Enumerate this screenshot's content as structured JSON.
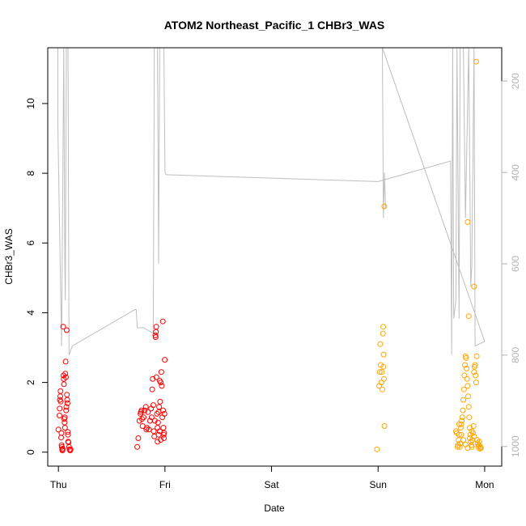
{
  "chart_data": {
    "type": "scatter",
    "title": "ATOM2 Northeast_Pacific_1 CHBr3_WAS",
    "xlabel": "Date",
    "ylabel": "CHBr3_WAS",
    "x_ticks": [
      {
        "label": "Thu",
        "x": 0
      },
      {
        "label": "Fri",
        "x": 1
      },
      {
        "label": "Sat",
        "x": 2
      },
      {
        "label": "Sun",
        "x": 3
      },
      {
        "label": "Mon",
        "x": 4
      }
    ],
    "xlim": [
      -0.1,
      4.16
    ],
    "ylim": [
      -0.4,
      11.6
    ],
    "y_ticks": [
      0,
      2,
      4,
      6,
      8,
      10
    ],
    "y2_ticks": [
      200,
      400,
      600,
      800,
      1000
    ],
    "y2lim": [
      1043,
      127
    ],
    "colors": {
      "series_red": "#ff0000",
      "series_orange": "#ffa500",
      "altitude_line": "#bebebe",
      "axis": "#000000",
      "right_axis": "#b3b3b3"
    },
    "altitude_profile": [
      [
        -0.005,
        127
      ],
      [
        -0.005,
        300
      ],
      [
        0.03,
        780
      ],
      [
        0.05,
        127
      ],
      [
        0.06,
        600
      ],
      [
        0.065,
        680
      ],
      [
        0.075,
        127
      ],
      [
        0.09,
        127
      ],
      [
        0.1,
        800
      ],
      [
        0.13,
        780
      ],
      [
        0.72,
        700
      ],
      [
        0.73,
        700
      ],
      [
        0.74,
        740
      ],
      [
        0.8,
        740
      ],
      [
        0.89,
        752
      ],
      [
        0.9,
        127
      ],
      [
        0.93,
        127
      ],
      [
        0.94,
        600
      ],
      [
        0.95,
        127
      ],
      [
        0.97,
        127
      ],
      [
        0.99,
        127
      ],
      [
        1.0,
        400
      ],
      [
        1.01,
        405
      ],
      [
        3.0,
        420
      ],
      [
        3.68,
        375
      ],
      [
        3.69,
        800
      ],
      [
        3.7,
        127
      ],
      [
        3.71,
        720
      ],
      [
        3.73,
        680
      ],
      [
        3.74,
        127
      ],
      [
        3.76,
        720
      ],
      [
        3.77,
        127
      ],
      [
        3.8,
        127
      ],
      [
        3.82,
        500
      ],
      [
        3.85,
        127
      ],
      [
        3.87,
        650
      ],
      [
        3.88,
        600
      ],
      [
        3.9,
        127
      ],
      [
        3.91,
        780
      ],
      [
        4.0,
        770
      ],
      [
        3.04,
        127
      ],
      [
        3.05,
        500
      ],
      [
        3.06,
        400
      ],
      [
        3.07,
        480
      ]
    ],
    "series": [
      {
        "color_key": "series_red",
        "points": [
          [
            0.0,
            0.65
          ],
          [
            0.01,
            1.05
          ],
          [
            0.012,
            1.25
          ],
          [
            0.015,
            1.5
          ],
          [
            0.018,
            1.6
          ],
          [
            0.02,
            1.75
          ],
          [
            0.022,
            1.45
          ],
          [
            0.025,
            0.42
          ],
          [
            0.028,
            0.55
          ],
          [
            0.03,
            0.2
          ],
          [
            0.032,
            0.15
          ],
          [
            0.035,
            0.08
          ],
          [
            0.038,
            0.05
          ],
          [
            0.04,
            0.1
          ],
          [
            0.045,
            3.6
          ],
          [
            0.048,
            2.2
          ],
          [
            0.05,
            2.1
          ],
          [
            0.052,
            1.95
          ],
          [
            0.055,
            0.95
          ],
          [
            0.058,
            0.85
          ],
          [
            0.06,
            1.0
          ],
          [
            0.062,
            0.7
          ],
          [
            0.065,
            2.25
          ],
          [
            0.068,
            2.6
          ],
          [
            0.07,
            2.15
          ],
          [
            0.072,
            1.2
          ],
          [
            0.075,
            1.3
          ],
          [
            0.078,
            3.5
          ],
          [
            0.08,
            1.65
          ],
          [
            0.082,
            1.5
          ],
          [
            0.085,
            1.4
          ],
          [
            0.088,
            0.58
          ],
          [
            0.09,
            0.5
          ],
          [
            0.092,
            0.3
          ],
          [
            0.095,
            0.28
          ],
          [
            0.1,
            0.15
          ],
          [
            0.105,
            0.08
          ],
          [
            0.11,
            0.05
          ],
          [
            0.115,
            0.08
          ],
          [
            0.74,
            0.15
          ],
          [
            0.75,
            0.4
          ],
          [
            0.76,
            0.9
          ],
          [
            0.77,
            1.1
          ],
          [
            0.775,
            1.15
          ],
          [
            0.78,
            1.2
          ],
          [
            0.785,
            0.95
          ],
          [
            0.79,
            0.75
          ],
          [
            0.8,
            1.0
          ],
          [
            0.81,
            1.2
          ],
          [
            0.82,
            1.3
          ],
          [
            0.825,
            0.65
          ],
          [
            0.83,
            0.7
          ],
          [
            0.84,
            1.15
          ],
          [
            0.85,
            0.65
          ],
          [
            0.86,
            0.9
          ],
          [
            0.87,
            1.25
          ],
          [
            0.875,
            1.0
          ],
          [
            0.88,
            1.8
          ],
          [
            0.885,
            2.1
          ],
          [
            0.89,
            1.35
          ],
          [
            0.895,
            0.6
          ],
          [
            0.9,
            0.45
          ],
          [
            0.905,
            0.9
          ],
          [
            0.91,
            3.35
          ],
          [
            0.912,
            3.3
          ],
          [
            0.915,
            3.45
          ],
          [
            0.918,
            3.6
          ],
          [
            0.92,
            2.15
          ],
          [
            0.925,
            1.1
          ],
          [
            0.93,
            0.7
          ],
          [
            0.935,
            0.85
          ],
          [
            0.94,
            1.15
          ],
          [
            0.945,
            1.3
          ],
          [
            0.95,
            2.05
          ],
          [
            0.955,
            1.45
          ],
          [
            0.96,
            2.0
          ],
          [
            0.965,
            2.3
          ],
          [
            0.97,
            1.9
          ],
          [
            0.975,
            1.0
          ],
          [
            0.98,
            3.75
          ],
          [
            0.982,
            1.2
          ],
          [
            0.985,
            0.7
          ],
          [
            0.988,
            0.5
          ],
          [
            0.99,
            0.4
          ],
          [
            0.992,
            0.55
          ],
          [
            0.995,
            1.1
          ],
          [
            0.998,
            2.65
          ],
          [
            0.93,
            0.3
          ],
          [
            0.94,
            0.5
          ],
          [
            0.95,
            0.6
          ],
          [
            0.96,
            0.35
          ]
        ]
      },
      {
        "color_key": "series_orange",
        "points": [
          [
            2.99,
            0.08
          ],
          [
            3.01,
            1.9
          ],
          [
            3.015,
            2.3
          ],
          [
            3.02,
            3.1
          ],
          [
            3.025,
            2.5
          ],
          [
            3.03,
            2.0
          ],
          [
            3.035,
            2.3
          ],
          [
            3.04,
            1.8
          ],
          [
            3.045,
            3.4
          ],
          [
            3.048,
            3.6
          ],
          [
            3.05,
            2.45
          ],
          [
            3.052,
            2.8
          ],
          [
            3.055,
            2.1
          ],
          [
            3.058,
            7.05
          ],
          [
            3.06,
            0.75
          ],
          [
            3.73,
            0.6
          ],
          [
            3.74,
            0.55
          ],
          [
            3.745,
            0.15
          ],
          [
            3.75,
            0.2
          ],
          [
            3.755,
            0.35
          ],
          [
            3.76,
            0.5
          ],
          [
            3.765,
            0.15
          ],
          [
            3.77,
            0.25
          ],
          [
            3.775,
            0.7
          ],
          [
            3.78,
            0.8
          ],
          [
            3.785,
            0.9
          ],
          [
            3.79,
            1.0
          ],
          [
            3.795,
            1.2
          ],
          [
            3.8,
            1.5
          ],
          [
            3.805,
            1.8
          ],
          [
            3.81,
            2.2
          ],
          [
            3.815,
            2.5
          ],
          [
            3.82,
            2.75
          ],
          [
            3.825,
            2.7
          ],
          [
            3.83,
            2.4
          ],
          [
            3.835,
            2.1
          ],
          [
            3.84,
            1.9
          ],
          [
            3.845,
            1.6
          ],
          [
            3.85,
            1.3
          ],
          [
            3.855,
            1.0
          ],
          [
            3.86,
            0.7
          ],
          [
            3.865,
            0.5
          ],
          [
            3.87,
            0.3
          ],
          [
            3.875,
            0.2
          ],
          [
            3.88,
            0.15
          ],
          [
            3.885,
            0.35
          ],
          [
            3.89,
            0.55
          ],
          [
            3.895,
            0.75
          ],
          [
            3.9,
            2.3
          ],
          [
            3.905,
            2.45
          ],
          [
            3.91,
            2.5
          ],
          [
            3.915,
            2.2
          ],
          [
            3.92,
            2.0
          ],
          [
            3.925,
            2.75
          ],
          [
            3.93,
            0.35
          ],
          [
            3.935,
            0.25
          ],
          [
            3.94,
            0.15
          ],
          [
            3.945,
            0.2
          ],
          [
            3.95,
            0.3
          ],
          [
            3.955,
            0.1
          ],
          [
            3.96,
            0.15
          ],
          [
            3.965,
            0.12
          ],
          [
            3.76,
            0.8
          ],
          [
            3.78,
            0.5
          ],
          [
            3.8,
            0.35
          ],
          [
            3.82,
            0.22
          ],
          [
            3.84,
            0.12
          ],
          [
            3.86,
            0.4
          ],
          [
            3.88,
            0.6
          ],
          [
            3.9,
            0.45
          ],
          [
            3.84,
            6.6
          ],
          [
            3.85,
            3.9
          ],
          [
            3.9,
            4.75
          ],
          [
            3.92,
            11.2
          ]
        ]
      }
    ]
  }
}
